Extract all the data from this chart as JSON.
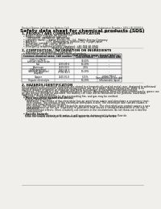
{
  "bg_color": "#f0efeb",
  "header_top_left": "Product Name: Lithium Ion Battery Cell",
  "header_top_right": "Substance Number: SDS-LIB-000016\nEstablished / Revision: Dec.1.2010",
  "title": "Safety data sheet for chemical products (SDS)",
  "section1_title": "1. PRODUCT AND COMPANY IDENTIFICATION",
  "section1_lines": [
    "  • Product name: Lithium Ion Battery Cell",
    "  • Product code: Cylindrical-type cell",
    "       (UR18650J, UR18650U, UR18650A)",
    "  • Company name:    Sanyo Electric Co., Ltd., Mobile Energy Company",
    "  • Address:            2001  Kamiyashiro, Sumoto City, Hyogo, Japan",
    "  • Telephone number:   +81-799-26-4111",
    "  • Fax number:   +81-799-26-4120",
    "  • Emergency telephone number (daytime): +81-799-26-3942",
    "                                     (Night and holiday): +81-799-26-3120"
  ],
  "section2_title": "2. COMPOSITION / INFORMATION ON INGREDIENTS",
  "section2_intro": "  • Substance or preparation: Preparation",
  "section2_sub": "  • Information about the chemical nature of product:",
  "table_col_headers": [
    "Common chemical name",
    "CAS number",
    "Concentration /\nConcentration range",
    "Classification and\nhazard labeling"
  ],
  "table_rows": [
    [
      "Lithium cobalt oxide\n(LiMn-Co-PBO4)",
      "-",
      "30-60%",
      "-"
    ],
    [
      "Iron",
      "7439-89-6",
      "10-20%",
      "-"
    ],
    [
      "Aluminum",
      "7429-90-5",
      "2-8%",
      "-"
    ],
    [
      "Graphite\n(Artificial graphite)\n(LiMn-graphite)",
      "77782-42-5\n7782-44-3",
      "10-20%",
      "-"
    ],
    [
      "Copper",
      "7440-50-8",
      "5-15%",
      "Sensitization of the skin\ngroup R42,3"
    ],
    [
      "Organic electrolyte",
      "-",
      "10-20%",
      "Inflammable liquid"
    ]
  ],
  "section3_title": "3. HAZARDS IDENTIFICATION",
  "section3_paras": [
    "For the battery cell, chemical materials are stored in a hermetically sealed metal case, designed to withstand",
    "temperatures and pressures expected during normal use. As a result, during normal use, there is no",
    "physical danger of ignition or explosion and there is no danger of hazardous materials leakage.",
    "  However, if exposed to a fire, added mechanical shocks, decomposed, short-circuited unnecessarily, gases can",
    "be gas release ventilation operated. The battery cell case will be breached at fire portions, hazardous",
    "materials may be released.",
    "  Moreover, if heated strongly by the surrounding fire, and gas may be emitted."
  ],
  "section3_sub1_header": "  • Most important hazard and effects:",
  "section3_sub1_lines": [
    "    Human health effects:",
    "      Inhalation: The release of the electrolyte has an anesthesia action and stimulates a respiratory tract.",
    "      Skin contact: The release of the electrolyte stimulates a skin. The electrolyte skin contact causes a",
    "      sore and stimulation on the skin.",
    "      Eye contact: The release of the electrolyte stimulates eyes. The electrolyte eye contact causes a sore",
    "      and stimulation on the eye. Especially, a substance that causes a strong inflammation of the eye is",
    "      contained.",
    "      Environmental effects: Since a battery cell remains in the environment, do not throw out it into the",
    "      environment."
  ],
  "section3_sub2_header": "  • Specific hazards:",
  "section3_sub2_lines": [
    "    If the electrolyte contacts with water, it will generate detrimental hydrogen fluoride.",
    "    Since the sealed electrolyte is inflammable liquid, do not bring close to fire."
  ]
}
